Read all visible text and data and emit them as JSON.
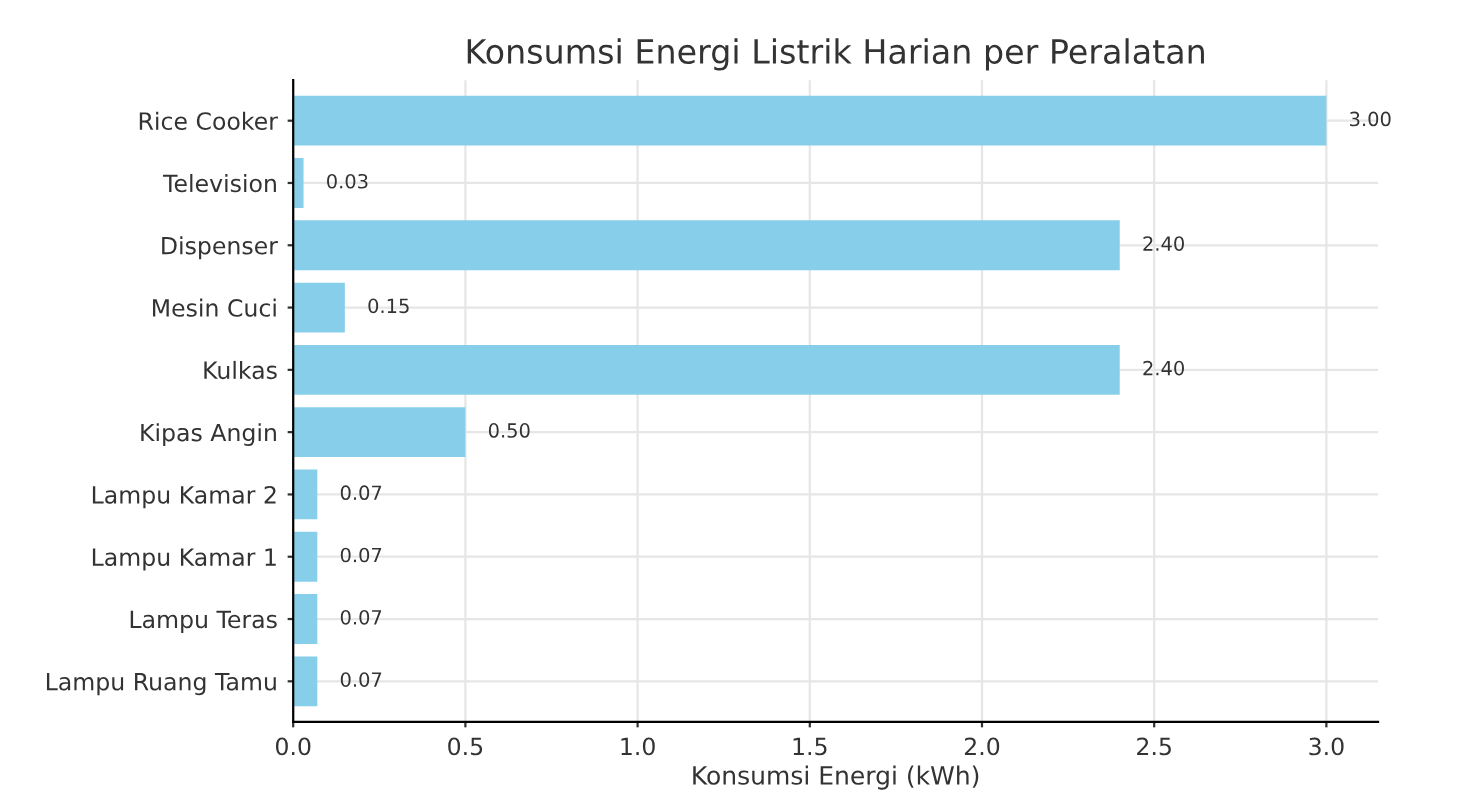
{
  "chart_data": {
    "type": "bar",
    "orientation": "horizontal",
    "title": "Konsumsi Energi Listrik Harian per Peralatan",
    "xlabel": "Konsumsi Energi (kWh)",
    "categories": [
      "Rice Cooker",
      "Television",
      "Dispenser",
      "Mesin Cuci",
      "Kulkas",
      "Kipas Angin",
      "Lampu Kamar 2",
      "Lampu Kamar 1",
      "Lampu Teras",
      "Lampu Ruang Tamu"
    ],
    "values": [
      3.0,
      0.03,
      2.4,
      0.15,
      2.4,
      0.5,
      0.07,
      0.07,
      0.07,
      0.07
    ],
    "value_labels": [
      "3.00",
      "0.03",
      "2.40",
      "0.15",
      "2.40",
      "0.50",
      "0.07",
      "0.07",
      "0.07",
      "0.07"
    ],
    "color": "#87ceeb",
    "xlim": [
      0,
      3.15
    ],
    "xticks": [
      {
        "value": 0,
        "label": "0.0"
      },
      0.5,
      {
        "value": 1,
        "label": "1.0"
      },
      1.5,
      {
        "value": 2,
        "label": "2.0"
      },
      2.5,
      {
        "value": 3,
        "label": "3.0"
      }
    ],
    "grid": true
  }
}
